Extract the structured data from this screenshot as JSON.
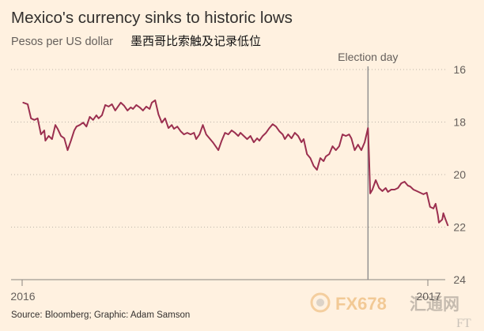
{
  "chart_data": {
    "type": "line",
    "title": "Mexico's currency sinks to historic lows",
    "subtitle": "Pesos per US dollar",
    "subtitle_cn": "墨西哥比索触及记录低位",
    "xlabel": "",
    "ylabel": "",
    "y_axis": {
      "min": 16,
      "max": 24,
      "inverted": true,
      "side": "right",
      "grid": true,
      "ticks": [
        16,
        18,
        20,
        22,
        24
      ]
    },
    "x_axis": {
      "start": "2016-01-01",
      "end": "2017-01-01",
      "ticks": [
        {
          "date": "2016-01-01",
          "label": "2016"
        },
        {
          "date": "2017-01-01",
          "label": "2017"
        }
      ]
    },
    "annotations": [
      {
        "type": "vertical-line",
        "date": "2016-11-08",
        "label": "Election day"
      }
    ],
    "series": [
      {
        "color": "#9B2F4F",
        "points": [
          [
            "2016-01-02",
            17.26
          ],
          [
            "2016-01-06",
            17.32
          ],
          [
            "2016-01-09",
            17.86
          ],
          [
            "2016-01-12",
            17.92
          ],
          [
            "2016-01-15",
            17.86
          ],
          [
            "2016-01-18",
            18.47
          ],
          [
            "2016-01-21",
            18.32
          ],
          [
            "2016-01-22",
            18.71
          ],
          [
            "2016-01-25",
            18.53
          ],
          [
            "2016-01-28",
            18.65
          ],
          [
            "2016-01-31",
            18.11
          ],
          [
            "2016-02-02",
            18.26
          ],
          [
            "2016-02-05",
            18.53
          ],
          [
            "2016-02-08",
            18.62
          ],
          [
            "2016-02-11",
            19.07
          ],
          [
            "2016-02-14",
            18.71
          ],
          [
            "2016-02-17",
            18.32
          ],
          [
            "2016-02-19",
            18.17
          ],
          [
            "2016-02-22",
            18.11
          ],
          [
            "2016-02-25",
            18.02
          ],
          [
            "2016-02-28",
            18.17
          ],
          [
            "2016-03-02",
            17.8
          ],
          [
            "2016-03-05",
            17.92
          ],
          [
            "2016-03-08",
            17.74
          ],
          [
            "2016-03-10",
            17.86
          ],
          [
            "2016-03-13",
            17.74
          ],
          [
            "2016-03-16",
            17.35
          ],
          [
            "2016-03-19",
            17.41
          ],
          [
            "2016-03-22",
            17.32
          ],
          [
            "2016-03-25",
            17.56
          ],
          [
            "2016-03-27",
            17.44
          ],
          [
            "2016-03-30",
            17.26
          ],
          [
            "2016-04-02",
            17.38
          ],
          [
            "2016-04-05",
            17.56
          ],
          [
            "2016-04-08",
            17.44
          ],
          [
            "2016-04-10",
            17.5
          ],
          [
            "2016-04-13",
            17.35
          ],
          [
            "2016-04-16",
            17.44
          ],
          [
            "2016-04-19",
            17.56
          ],
          [
            "2016-04-22",
            17.41
          ],
          [
            "2016-04-25",
            17.5
          ],
          [
            "2016-04-27",
            17.26
          ],
          [
            "2016-04-30",
            17.17
          ],
          [
            "2016-05-03",
            17.71
          ],
          [
            "2016-05-06",
            18.02
          ],
          [
            "2016-05-09",
            17.86
          ],
          [
            "2016-05-12",
            18.23
          ],
          [
            "2016-05-15",
            18.11
          ],
          [
            "2016-05-17",
            18.26
          ],
          [
            "2016-05-20",
            18.17
          ],
          [
            "2016-05-23",
            18.35
          ],
          [
            "2016-05-26",
            18.47
          ],
          [
            "2016-05-29",
            18.41
          ],
          [
            "2016-06-01",
            18.47
          ],
          [
            "2016-06-04",
            18.41
          ],
          [
            "2016-06-06",
            18.65
          ],
          [
            "2016-06-09",
            18.47
          ],
          [
            "2016-06-12",
            18.11
          ],
          [
            "2016-06-15",
            18.47
          ],
          [
            "2016-06-18",
            18.62
          ],
          [
            "2016-06-21",
            18.77
          ],
          [
            "2016-06-24",
            18.95
          ],
          [
            "2016-06-26",
            19.07
          ],
          [
            "2016-06-29",
            18.71
          ],
          [
            "2016-07-02",
            18.41
          ],
          [
            "2016-07-05",
            18.47
          ],
          [
            "2016-07-08",
            18.32
          ],
          [
            "2016-07-11",
            18.41
          ],
          [
            "2016-07-14",
            18.53
          ],
          [
            "2016-07-16",
            18.41
          ],
          [
            "2016-07-19",
            18.53
          ],
          [
            "2016-07-22",
            18.65
          ],
          [
            "2016-07-25",
            18.53
          ],
          [
            "2016-07-28",
            18.77
          ],
          [
            "2016-07-31",
            18.62
          ],
          [
            "2016-08-02",
            18.71
          ],
          [
            "2016-08-05",
            18.53
          ],
          [
            "2016-08-08",
            18.41
          ],
          [
            "2016-08-11",
            18.23
          ],
          [
            "2016-08-14",
            18.08
          ],
          [
            "2016-08-17",
            18.17
          ],
          [
            "2016-08-20",
            18.35
          ],
          [
            "2016-08-23",
            18.47
          ],
          [
            "2016-08-25",
            18.65
          ],
          [
            "2016-08-28",
            18.47
          ],
          [
            "2016-08-31",
            18.62
          ],
          [
            "2016-09-03",
            18.41
          ],
          [
            "2016-09-06",
            18.53
          ],
          [
            "2016-09-09",
            18.77
          ],
          [
            "2016-09-11",
            18.65
          ],
          [
            "2016-09-14",
            19.22
          ],
          [
            "2016-09-17",
            19.37
          ],
          [
            "2016-09-20",
            19.67
          ],
          [
            "2016-09-23",
            19.82
          ],
          [
            "2016-09-26",
            19.37
          ],
          [
            "2016-09-29",
            19.49
          ],
          [
            "2016-10-01",
            19.31
          ],
          [
            "2016-10-04",
            19.22
          ],
          [
            "2016-10-07",
            18.92
          ],
          [
            "2016-10-10",
            19.07
          ],
          [
            "2016-10-13",
            18.92
          ],
          [
            "2016-10-16",
            18.47
          ],
          [
            "2016-10-19",
            18.53
          ],
          [
            "2016-10-22",
            18.47
          ],
          [
            "2016-10-24",
            18.62
          ],
          [
            "2016-10-27",
            19.07
          ],
          [
            "2016-10-30",
            18.86
          ],
          [
            "2016-11-02",
            19.07
          ],
          [
            "2016-11-05",
            18.77
          ],
          [
            "2016-11-08",
            18.23
          ],
          [
            "2016-11-09",
            19.37
          ],
          [
            "2016-11-10",
            20.72
          ],
          [
            "2016-11-12",
            20.57
          ],
          [
            "2016-11-15",
            20.21
          ],
          [
            "2016-11-18",
            20.51
          ],
          [
            "2016-11-21",
            20.63
          ],
          [
            "2016-11-24",
            20.51
          ],
          [
            "2016-11-26",
            20.66
          ],
          [
            "2016-11-29",
            20.57
          ],
          [
            "2016-12-02",
            20.57
          ],
          [
            "2016-12-05",
            20.51
          ],
          [
            "2016-12-08",
            20.33
          ],
          [
            "2016-12-11",
            20.27
          ],
          [
            "2016-12-14",
            20.42
          ],
          [
            "2016-12-16",
            20.45
          ],
          [
            "2016-12-19",
            20.57
          ],
          [
            "2016-12-22",
            20.63
          ],
          [
            "2016-12-25",
            20.69
          ],
          [
            "2016-12-28",
            20.75
          ],
          [
            "2016-12-31",
            20.69
          ],
          [
            "2017-01-03",
            21.23
          ],
          [
            "2017-01-06",
            21.29
          ],
          [
            "2017-01-08",
            21.11
          ],
          [
            "2017-01-10",
            21.53
          ],
          [
            "2017-01-11",
            21.83
          ],
          [
            "2017-01-14",
            21.71
          ],
          [
            "2017-01-15",
            21.47
          ],
          [
            "2017-01-17",
            21.71
          ],
          [
            "2017-01-19",
            21.93
          ]
        ]
      }
    ]
  },
  "source": "Source: Bloomberg; Graphic: Adam Samson",
  "watermark": {
    "brand": "FX678",
    "brand_cn": "汇通网",
    "ft_logo": "FT"
  },
  "colors": {
    "background": "#FFF1E0",
    "text": "#33302E",
    "muted": "#66605C",
    "grid": "#BDB4A9",
    "axis": "#8A8580",
    "annotation_line": "#8E8E8E"
  }
}
